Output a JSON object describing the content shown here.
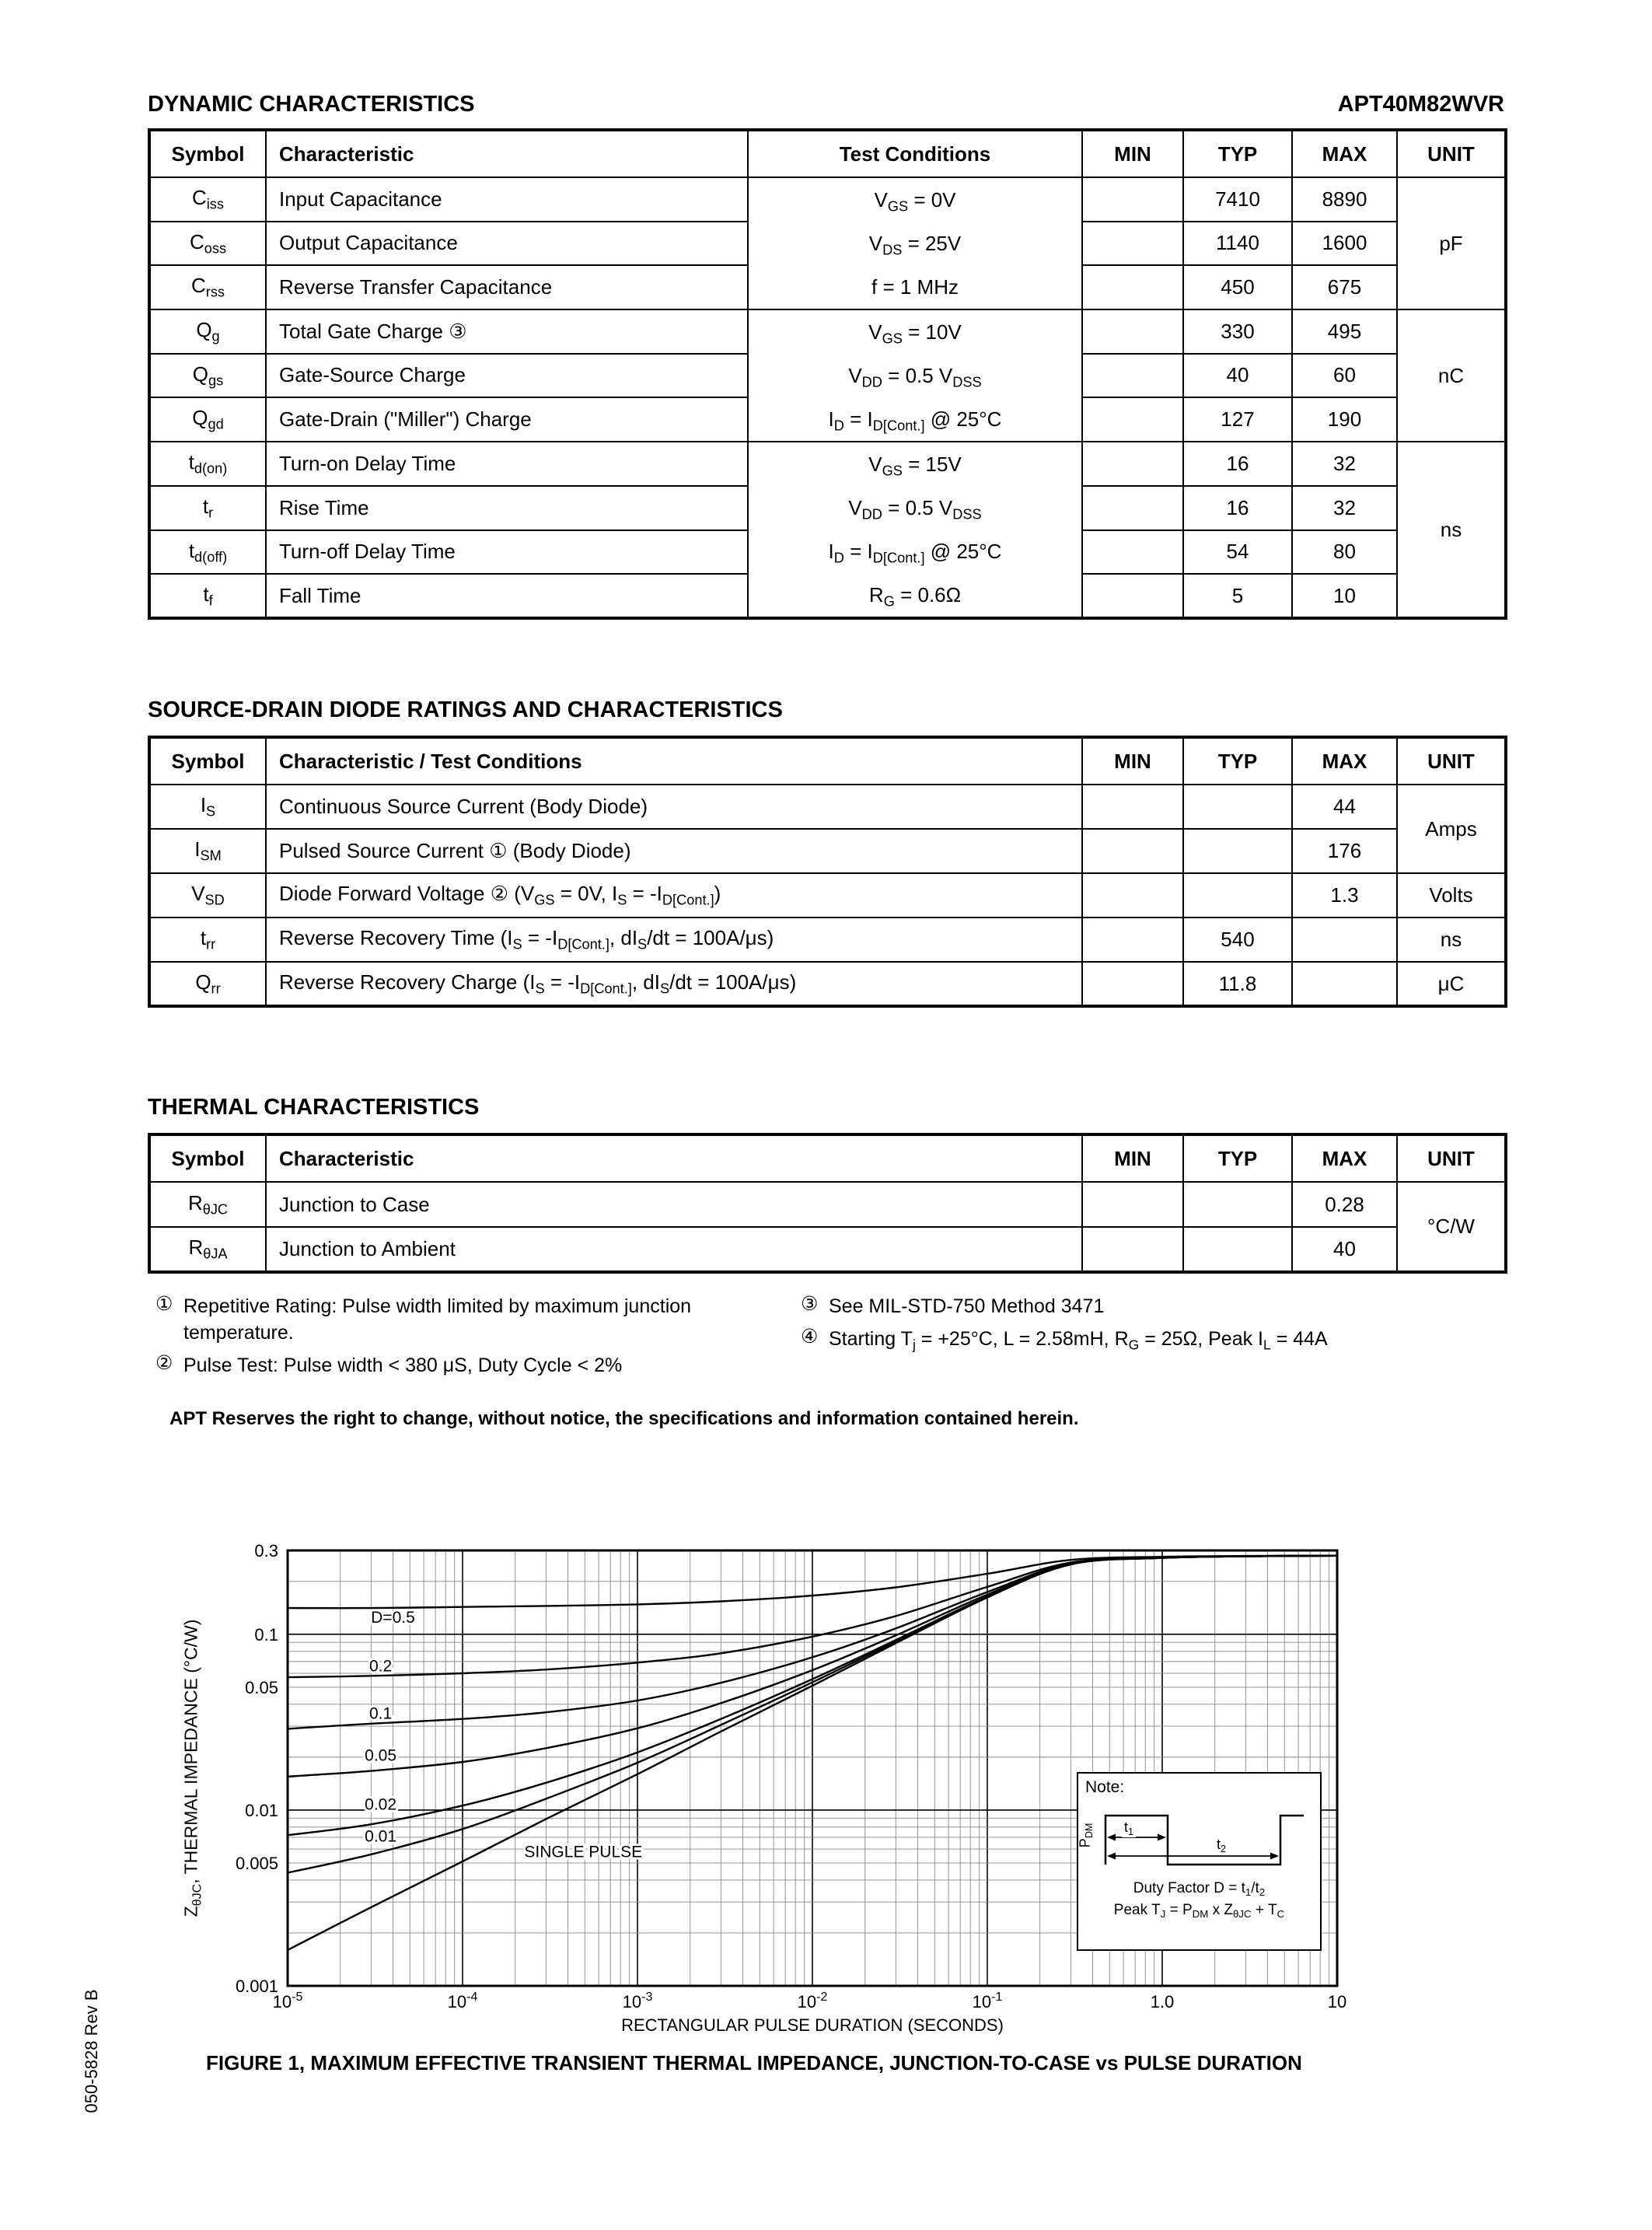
{
  "page": {
    "header_left": "DYNAMIC CHARACTERISTICS",
    "header_right": "APT40M82WVR",
    "side_label": "050-5828 Rev B",
    "footer_bold": "APT Reserves the right to change, without notice, the specifications and information contained herein."
  },
  "tables": {
    "dynamic": {
      "headers": [
        "Symbol",
        "Characteristic",
        "Test Conditions",
        "MIN",
        "TYP",
        "MAX",
        "UNIT"
      ],
      "groups": [
        {
          "conditions": [
            "V~GS~ = 0V",
            "V~DS~ = 25V",
            "f = 1 MHz"
          ],
          "unit": "pF",
          "rows": [
            {
              "symbol": "C~iss~",
              "characteristic": "Input Capacitance",
              "typ": "7410",
              "max": "8890"
            },
            {
              "symbol": "C~oss~",
              "characteristic": "Output Capacitance",
              "typ": "1140",
              "max": "1600"
            },
            {
              "symbol": "C~rss~",
              "characteristic": "Reverse Transfer Capacitance",
              "typ": "450",
              "max": "675"
            }
          ]
        },
        {
          "conditions": [
            "V~GS~ = 10V",
            "V~DD~ = 0.5 V~DSS~",
            "I~D~ = I~D[Cont.]~ @ 25°C"
          ],
          "unit": "nC",
          "rows": [
            {
              "symbol": "Q~g~",
              "characteristic": "Total Gate Charge ③",
              "typ": "330",
              "max": "495"
            },
            {
              "symbol": "Q~gs~",
              "characteristic": "Gate-Source Charge",
              "typ": "40",
              "max": "60"
            },
            {
              "symbol": "Q~gd~",
              "characteristic": "Gate-Drain (\"Miller\") Charge",
              "typ": "127",
              "max": "190"
            }
          ]
        },
        {
          "conditions": [
            "V~GS~ = 15V",
            "V~DD~ = 0.5 V~DSS~",
            "I~D~ = I~D[Cont.]~ @ 25°C",
            "R~G~ = 0.6Ω"
          ],
          "unit": "ns",
          "rows": [
            {
              "symbol": "t~d(on)~",
              "characteristic": "Turn-on Delay Time",
              "typ": "16",
              "max": "32"
            },
            {
              "symbol": "t~r~",
              "characteristic": "Rise Time",
              "typ": "16",
              "max": "32"
            },
            {
              "symbol": "t~d(off)~",
              "characteristic": "Turn-off Delay Time",
              "typ": "54",
              "max": "80"
            },
            {
              "symbol": "t~f~",
              "characteristic": "Fall Time",
              "typ": "5",
              "max": "10"
            }
          ]
        }
      ]
    },
    "diode": {
      "title": "SOURCE-DRAIN DIODE RATINGS AND CHARACTERISTICS",
      "headers": [
        "Symbol",
        "Characteristic / Test Conditions",
        "MIN",
        "TYP",
        "MAX",
        "UNIT"
      ],
      "rows": [
        {
          "symbol": "I~S~",
          "characteristic": "Continuous Source Current  (Body Diode)",
          "typ": "",
          "max": "44",
          "unit": "Amps"
        },
        {
          "symbol": "I~SM~",
          "characteristic": "Pulsed Source Current ①  (Body Diode)",
          "typ": "",
          "max": "176"
        },
        {
          "symbol": "V~SD~",
          "characteristic": "Diode Forward Voltage ② (V~GS~ = 0V, I~S~ = -I~D[Cont.]~)",
          "typ": "",
          "max": "1.3",
          "unit": "Volts"
        },
        {
          "symbol": "t~rr~",
          "characteristic": "Reverse Recovery Time  (I~S~ = -I~D[Cont.]~, dI~S~/dt = 100A/μs)",
          "typ": "540",
          "max": "",
          "unit": "ns"
        },
        {
          "symbol": "Q~rr~",
          "characteristic": "Reverse Recovery Charge  (I~S~ = -I~D[Cont.]~, dI~S~/dt = 100A/μs)",
          "typ": "11.8",
          "max": "",
          "unit": "μC"
        }
      ]
    },
    "thermal": {
      "title": "THERMAL CHARACTERISTICS",
      "headers": [
        "Symbol",
        "Characteristic",
        "MIN",
        "TYP",
        "MAX",
        "UNIT"
      ],
      "rows": [
        {
          "symbol": "R~θJC~",
          "characteristic": "Junction to Case",
          "max": "0.28",
          "unit": "°C/W"
        },
        {
          "symbol": "R~θJA~",
          "characteristic": "Junction to Ambient",
          "max": "40"
        }
      ]
    }
  },
  "notes": {
    "left": [
      {
        "marker": "①",
        "text": "Repetitive Rating: Pulse width limited by maximum junction temperature."
      },
      {
        "marker": "②",
        "text": "Pulse Test: Pulse width < 380 μS, Duty Cycle < 2%"
      }
    ],
    "right": [
      {
        "marker": "③",
        "text": "See MIL-STD-750 Method 3471"
      },
      {
        "marker": "④",
        "text": "Starting T~j~ = +25°C, L = 2.58mH, R~G~ = 25Ω, Peak I~L~ = 44A"
      }
    ]
  },
  "chart_data": {
    "type": "line",
    "x_label": "RECTANGULAR PULSE DURATION (SECONDS)",
    "y_label": "Z~θJC~, THERMAL IMPEDANCE (°C/W)",
    "caption": "FIGURE 1, MAXIMUM EFFECTIVE TRANSIENT THERMAL IMPEDANCE, JUNCTION-TO-CASE vs PULSE DURATION",
    "xlim": [
      1e-05,
      10
    ],
    "ylim": [
      0.001,
      0.3
    ],
    "grid": "log-log minor gridlines on",
    "legend_position": "labels on curves",
    "x_ticks": [
      {
        "v": 1e-05,
        "label": "10^-5^"
      },
      {
        "v": 0.0001,
        "label": "10^-4^"
      },
      {
        "v": 0.001,
        "label": "10^-3^"
      },
      {
        "v": 0.01,
        "label": "10^-2^"
      },
      {
        "v": 0.1,
        "label": "10^-1^"
      },
      {
        "v": 1,
        "label": "1.0"
      },
      {
        "v": 10,
        "label": "10"
      }
    ],
    "y_ticks": [
      {
        "v": 0.3,
        "label": "0.3"
      },
      {
        "v": 0.1,
        "label": "0.1"
      },
      {
        "v": 0.05,
        "label": "0.05"
      },
      {
        "v": 0.01,
        "label": "0.01"
      },
      {
        "v": 0.005,
        "label": "0.005"
      },
      {
        "v": 0.001,
        "label": "0.001"
      }
    ],
    "t": [
      1e-05,
      3e-05,
      0.0001,
      0.0003,
      0.001,
      0.003,
      0.01,
      0.03,
      0.1,
      0.3,
      1,
      3,
      10
    ],
    "series": [
      {
        "name": "D=0.5",
        "label": "D=0.5",
        "label_t": 4e-05,
        "label_z": 0.125,
        "values": [
          0.141,
          0.141,
          0.143,
          0.145,
          0.148,
          0.154,
          0.166,
          0.185,
          0.221,
          0.265,
          0.276,
          0.279,
          0.28
        ]
      },
      {
        "name": "D=0.2",
        "label": "0.2",
        "label_t": 3.4e-05,
        "label_z": 0.066,
        "values": [
          0.057,
          0.058,
          0.06,
          0.063,
          0.069,
          0.078,
          0.097,
          0.127,
          0.186,
          0.256,
          0.274,
          0.278,
          0.28
        ]
      },
      {
        "name": "D=0.1",
        "label": "0.1",
        "label_t": 3.4e-05,
        "label_z": 0.0355,
        "values": [
          0.029,
          0.031,
          0.033,
          0.036,
          0.042,
          0.053,
          0.074,
          0.108,
          0.174,
          0.253,
          0.273,
          0.278,
          0.28
        ]
      },
      {
        "name": "D=0.05",
        "label": "0.05",
        "label_t": 3.4e-05,
        "label_z": 0.0205,
        "values": [
          0.0155,
          0.0167,
          0.0188,
          0.0225,
          0.0292,
          0.0406,
          0.0625,
          0.0986,
          0.168,
          0.252,
          0.272,
          0.278,
          0.28
        ]
      },
      {
        "name": "D=0.02",
        "label": "0.02",
        "label_t": 3.4e-05,
        "label_z": 0.0108,
        "values": [
          0.0072,
          0.0083,
          0.0106,
          0.0143,
          0.0213,
          0.033,
          0.0556,
          0.0928,
          0.164,
          0.251,
          0.272,
          0.278,
          0.28
        ]
      },
      {
        "name": "D=0.01",
        "label": "0.01",
        "label_t": 3.4e-05,
        "label_z": 0.0071,
        "values": [
          0.0044,
          0.0056,
          0.0078,
          0.0116,
          0.0186,
          0.0305,
          0.0533,
          0.0909,
          0.163,
          0.25,
          0.272,
          0.278,
          0.28
        ]
      },
      {
        "name": "SINGLE PULSE",
        "label": "SINGLE PULSE",
        "label_t": 0.00049,
        "label_z": 0.0058,
        "values": [
          0.0016,
          0.0028,
          0.0051,
          0.0089,
          0.016,
          0.028,
          0.051,
          0.089,
          0.162,
          0.25,
          0.272,
          0.278,
          0.28
        ]
      }
    ],
    "note_box": {
      "title": "Note:",
      "pdm_label": "P~DM~",
      "t1_label": "t~1~",
      "t2_label": "t~2~",
      "duty_line": "Duty Factor  D = t~1~/t~2~",
      "peak_line": "Peak T~J~ = P~DM~ x Z~θJC~ + T~C~"
    }
  }
}
